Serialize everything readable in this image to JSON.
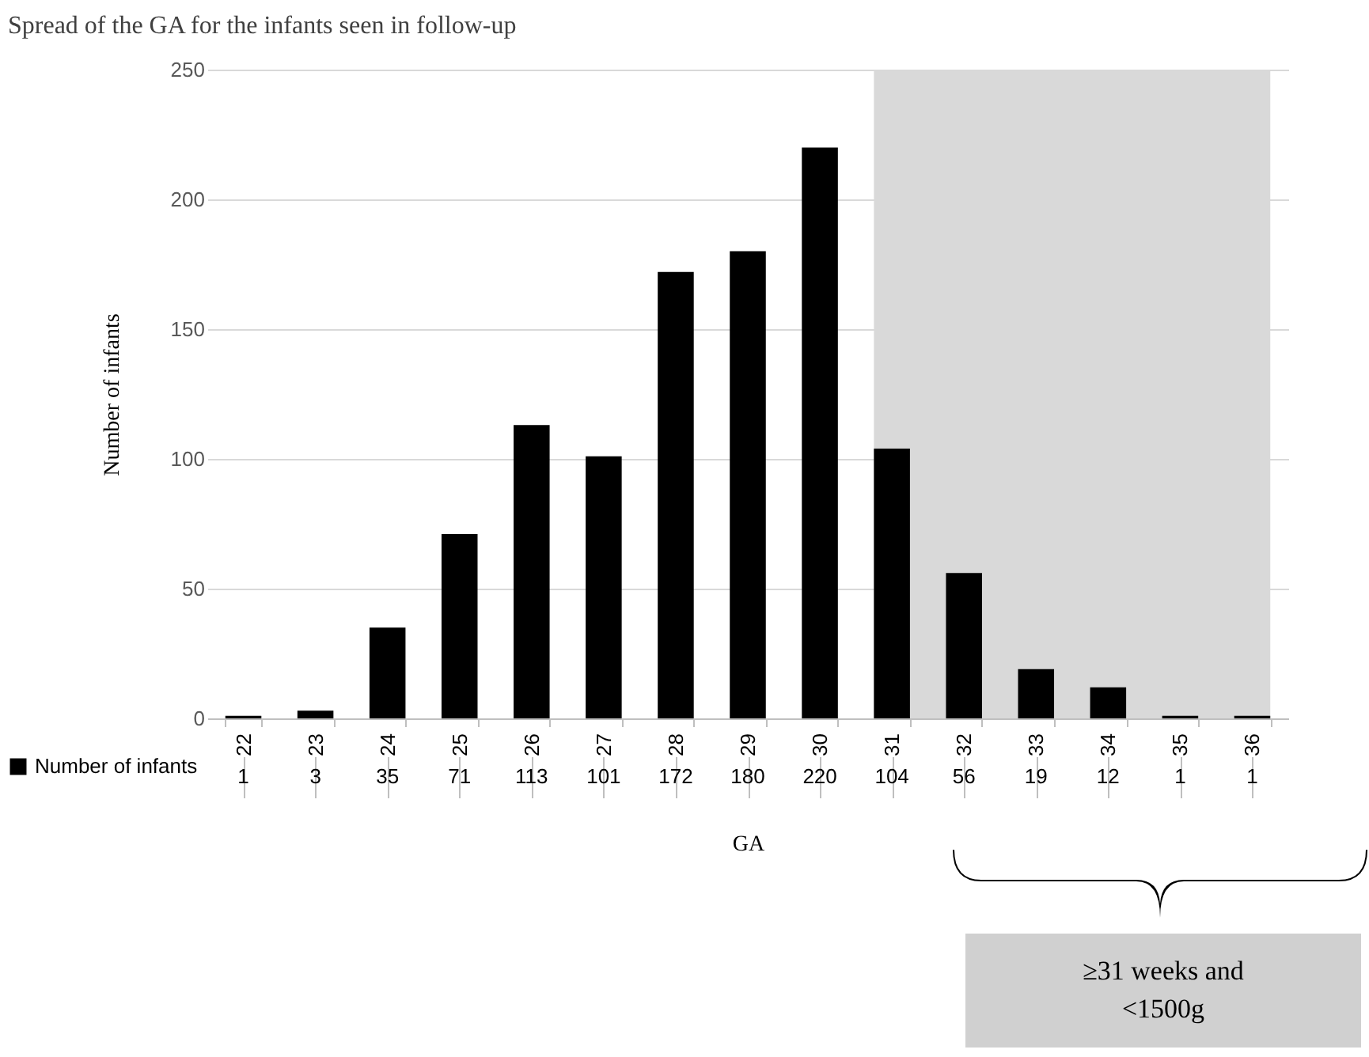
{
  "chart_data": {
    "type": "bar",
    "title": "Spread of the GA for the infants  seen in follow-up",
    "xlabel": "GA",
    "ylabel": "Number of infants",
    "categories": [
      "22",
      "23",
      "24",
      "25",
      "26",
      "27",
      "28",
      "29",
      "30",
      "31",
      "32",
      "33",
      "34",
      "35",
      "36"
    ],
    "series": [
      {
        "name": "Number of infants",
        "color": "#000000",
        "values": [
          1,
          3,
          35,
          71,
          113,
          101,
          172,
          180,
          220,
          104,
          56,
          19,
          12,
          1,
          1
        ]
      }
    ],
    "ylim": [
      0,
      250
    ],
    "yticks": [
      0,
      50,
      100,
      150,
      200,
      250
    ],
    "grid": "y",
    "legend": "bottom left",
    "data_labels": true,
    "bands": [
      {
        "axis": "x",
        "from": "31",
        "to": "36",
        "color": "#d9d9d9"
      }
    ],
    "annotations": [
      "≥31 weeks and <1500g"
    ]
  }
}
